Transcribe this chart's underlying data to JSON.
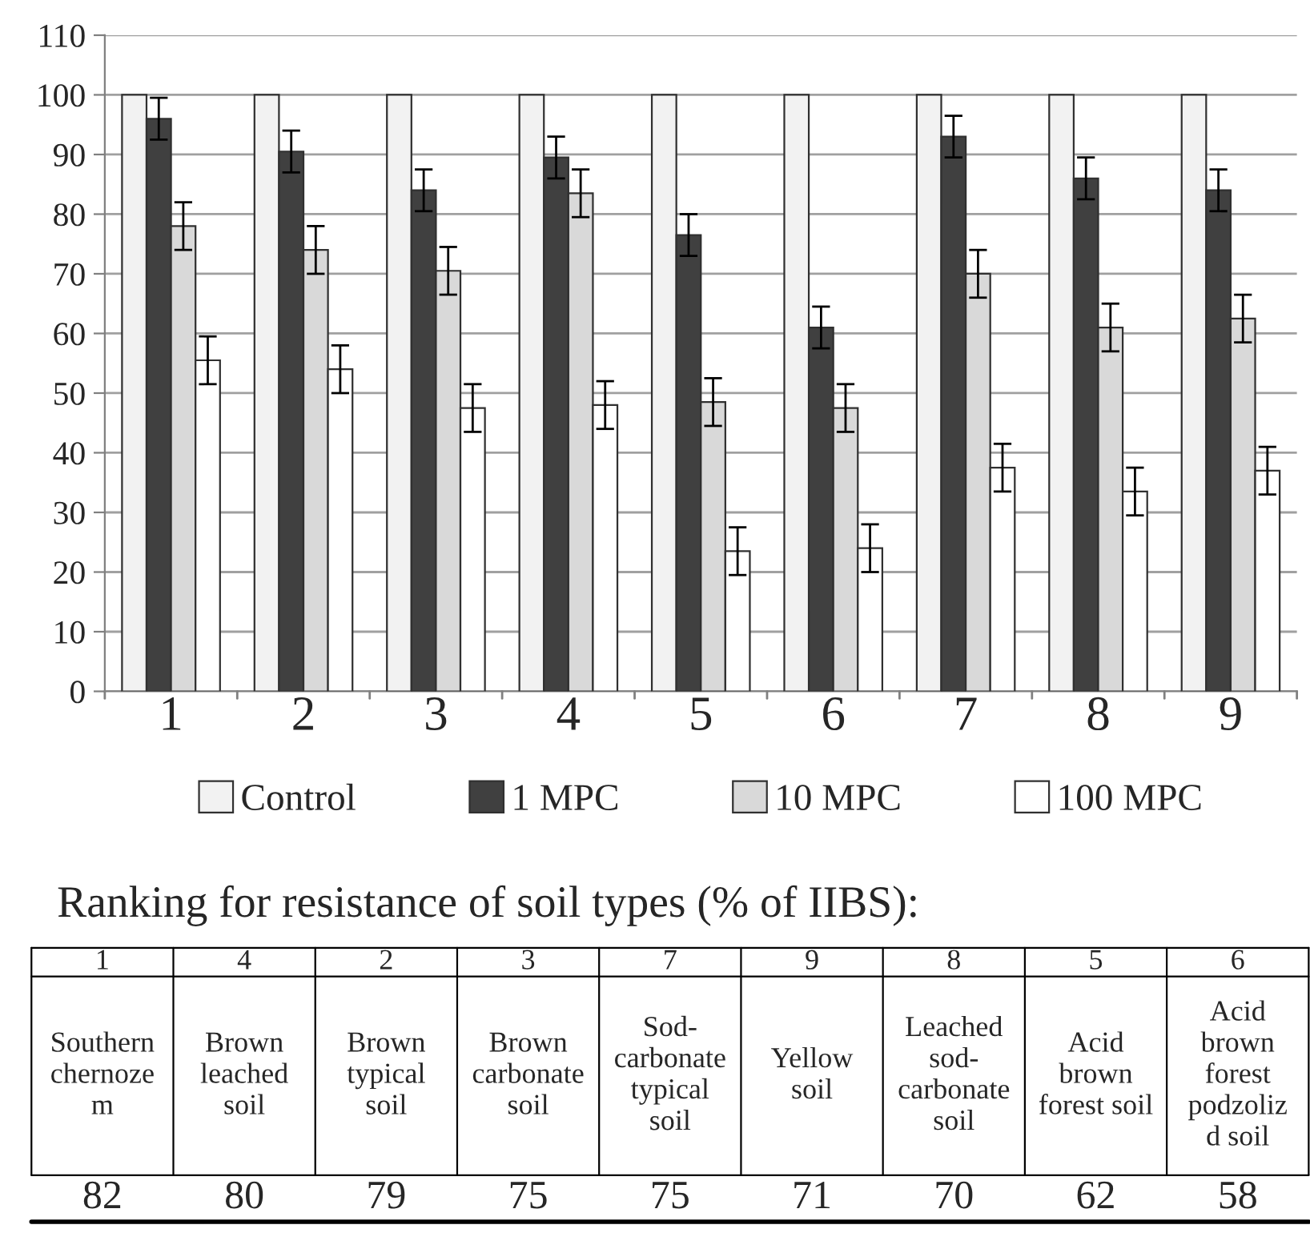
{
  "chart_data": [
    {
      "type": "bar",
      "categories": [
        "1",
        "2",
        "3",
        "4",
        "5",
        "6",
        "7",
        "8",
        "9"
      ],
      "series": [
        {
          "name": "Control",
          "color": "#f2f2f2",
          "values": [
            100,
            100,
            100,
            100,
            100,
            100,
            100,
            100,
            100
          ]
        },
        {
          "name": "1 MPC",
          "color": "#404040",
          "values": [
            96,
            90.5,
            84,
            89.5,
            76.5,
            61,
            93,
            86,
            84
          ],
          "errors": [
            3.5,
            3.5,
            3.5,
            3.5,
            3.5,
            3.5,
            3.5,
            3.5,
            3.5
          ]
        },
        {
          "name": "10 MPC",
          "color": "#d9d9d9",
          "values": [
            78,
            74,
            70.5,
            83.5,
            48.5,
            47.5,
            70,
            61,
            62.5
          ],
          "errors": [
            4,
            4,
            4,
            4,
            4,
            4,
            4,
            4,
            4
          ]
        },
        {
          "name": "100 MPC",
          "color": "#ffffff",
          "values": [
            55.5,
            54,
            47.5,
            48,
            23.5,
            24,
            37.5,
            33.5,
            37
          ],
          "errors": [
            4,
            4,
            4,
            4,
            4,
            4,
            4,
            4,
            4
          ]
        }
      ],
      "ylim": [
        0,
        110
      ],
      "yticks": [
        0,
        10,
        20,
        30,
        40,
        50,
        60,
        70,
        80,
        90,
        100,
        110
      ],
      "grid": "y",
      "legend": "bottom"
    },
    {
      "type": "other",
      "title": "Ranking for resistance of soil types (% of IIBS):",
      "categories": [
        "1",
        "4",
        "2",
        "3",
        "7",
        "9",
        "8",
        "5",
        "6"
      ],
      "annotations": [
        "Southern\nchernoze\nm",
        "Brown\nleached\nsoil",
        "Brown\ntypical\nsoil",
        "Brown\ncarbonate\nsoil",
        "Sod-\ncarbonate\ntypical\nsoil",
        "Yellow\nsoil",
        "Leached\nsod-\ncarbonate\nsoil",
        "Acid\nbrown\nforest soil",
        "Acid\nbrown\nforest\npodzoliz\nd soil"
      ],
      "values": [
        82,
        80,
        79,
        75,
        75,
        71,
        70,
        62,
        58
      ],
      "data_labels": true
    }
  ]
}
